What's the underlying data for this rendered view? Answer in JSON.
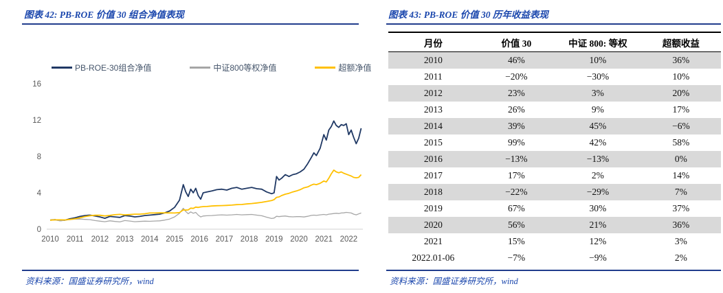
{
  "page": {
    "background": "#FFFFFF",
    "rule_color": "#203C8C",
    "title_color": "#1B47AD"
  },
  "left_panel": {
    "title": "图表 42: PB-ROE 价值 30 组合净值表现",
    "source": "资料来源：国盛证券研究所，wind"
  },
  "right_panel": {
    "title": "图表 43: PB-ROE 价值 30 历年收益表现",
    "source": "资料来源：国盛证券研究所，wind"
  },
  "chart_data": [
    {
      "type": "line",
      "title": "PB-ROE 价值 30 组合净值表现",
      "xlabel": "",
      "ylabel": "",
      "ylim": [
        0,
        16
      ],
      "yticks": [
        0,
        4,
        8,
        12,
        16
      ],
      "xticks": [
        2010,
        2011,
        2012,
        2013,
        2014,
        2015,
        2016,
        2017,
        2018,
        2019,
        2020,
        2021,
        2022
      ],
      "grid": false,
      "legend_position": "top",
      "axis_color": "#D9D9D9",
      "tick_label_color": "#595959",
      "series": [
        {
          "name": "PB-ROE-30组合净值",
          "color": "#1F3864",
          "width": 1.8,
          "points": [
            [
              2010.0,
              1.0
            ],
            [
              2010.2,
              1.05
            ],
            [
              2010.4,
              0.95
            ],
            [
              2010.6,
              1.0
            ],
            [
              2010.8,
              1.15
            ],
            [
              2011.0,
              1.25
            ],
            [
              2011.2,
              1.4
            ],
            [
              2011.4,
              1.5
            ],
            [
              2011.6,
              1.55
            ],
            [
              2011.8,
              1.45
            ],
            [
              2012.0,
              1.35
            ],
            [
              2012.2,
              1.2
            ],
            [
              2012.4,
              1.4
            ],
            [
              2012.6,
              1.35
            ],
            [
              2012.8,
              1.3
            ],
            [
              2013.0,
              1.5
            ],
            [
              2013.2,
              1.45
            ],
            [
              2013.4,
              1.35
            ],
            [
              2013.6,
              1.4
            ],
            [
              2013.8,
              1.5
            ],
            [
              2014.0,
              1.55
            ],
            [
              2014.2,
              1.6
            ],
            [
              2014.4,
              1.65
            ],
            [
              2014.6,
              1.8
            ],
            [
              2014.8,
              2.0
            ],
            [
              2015.0,
              2.4
            ],
            [
              2015.2,
              3.2
            ],
            [
              2015.35,
              4.9
            ],
            [
              2015.45,
              4.1
            ],
            [
              2015.55,
              3.6
            ],
            [
              2015.65,
              4.4
            ],
            [
              2015.75,
              4.0
            ],
            [
              2015.85,
              4.5
            ],
            [
              2015.95,
              3.7
            ],
            [
              2016.05,
              3.3
            ],
            [
              2016.15,
              4.0
            ],
            [
              2016.3,
              4.1
            ],
            [
              2016.5,
              4.2
            ],
            [
              2016.7,
              4.35
            ],
            [
              2016.9,
              4.4
            ],
            [
              2017.1,
              4.3
            ],
            [
              2017.3,
              4.5
            ],
            [
              2017.5,
              4.6
            ],
            [
              2017.7,
              4.4
            ],
            [
              2017.9,
              4.5
            ],
            [
              2018.1,
              4.6
            ],
            [
              2018.3,
              4.45
            ],
            [
              2018.5,
              4.4
            ],
            [
              2018.7,
              4.1
            ],
            [
              2018.9,
              3.9
            ],
            [
              2019.0,
              4.0
            ],
            [
              2019.1,
              5.8
            ],
            [
              2019.2,
              5.4
            ],
            [
              2019.3,
              5.6
            ],
            [
              2019.45,
              6.0
            ],
            [
              2019.6,
              5.8
            ],
            [
              2019.75,
              6.0
            ],
            [
              2019.9,
              6.1
            ],
            [
              2020.05,
              6.3
            ],
            [
              2020.2,
              6.6
            ],
            [
              2020.35,
              7.2
            ],
            [
              2020.5,
              7.9
            ],
            [
              2020.6,
              8.4
            ],
            [
              2020.7,
              8.1
            ],
            [
              2020.85,
              8.9
            ],
            [
              2021.0,
              10.4
            ],
            [
              2021.1,
              9.8
            ],
            [
              2021.2,
              10.9
            ],
            [
              2021.3,
              11.3
            ],
            [
              2021.4,
              11.9
            ],
            [
              2021.5,
              11.4
            ],
            [
              2021.6,
              11.2
            ],
            [
              2021.7,
              11.5
            ],
            [
              2021.8,
              11.4
            ],
            [
              2021.9,
              11.6
            ],
            [
              2022.0,
              10.4
            ],
            [
              2022.1,
              10.9
            ],
            [
              2022.2,
              10.1
            ],
            [
              2022.3,
              9.4
            ],
            [
              2022.4,
              10.0
            ],
            [
              2022.5,
              11.1
            ]
          ]
        },
        {
          "name": "中证800等权净值",
          "color": "#A6A6A6",
          "width": 1.3,
          "points": [
            [
              2010.0,
              1.0
            ],
            [
              2010.2,
              1.02
            ],
            [
              2010.4,
              0.92
            ],
            [
              2010.6,
              0.98
            ],
            [
              2010.8,
              1.08
            ],
            [
              2011.0,
              1.1
            ],
            [
              2011.2,
              1.12
            ],
            [
              2011.4,
              1.08
            ],
            [
              2011.6,
              1.05
            ],
            [
              2011.8,
              0.95
            ],
            [
              2012.0,
              0.88
            ],
            [
              2012.2,
              0.82
            ],
            [
              2012.4,
              0.92
            ],
            [
              2012.6,
              0.85
            ],
            [
              2012.8,
              0.8
            ],
            [
              2013.0,
              0.95
            ],
            [
              2013.2,
              0.9
            ],
            [
              2013.4,
              0.82
            ],
            [
              2013.6,
              0.85
            ],
            [
              2013.8,
              0.88
            ],
            [
              2014.0,
              0.87
            ],
            [
              2014.2,
              0.9
            ],
            [
              2014.4,
              0.92
            ],
            [
              2014.6,
              1.0
            ],
            [
              2014.8,
              1.12
            ],
            [
              2015.0,
              1.35
            ],
            [
              2015.2,
              1.75
            ],
            [
              2015.35,
              2.3
            ],
            [
              2015.45,
              1.95
            ],
            [
              2015.55,
              1.7
            ],
            [
              2015.65,
              1.9
            ],
            [
              2015.75,
              1.75
            ],
            [
              2015.85,
              1.85
            ],
            [
              2015.95,
              1.55
            ],
            [
              2016.05,
              1.35
            ],
            [
              2016.15,
              1.45
            ],
            [
              2016.3,
              1.48
            ],
            [
              2016.5,
              1.5
            ],
            [
              2016.7,
              1.55
            ],
            [
              2016.9,
              1.58
            ],
            [
              2017.1,
              1.55
            ],
            [
              2017.3,
              1.58
            ],
            [
              2017.5,
              1.62
            ],
            [
              2017.7,
              1.58
            ],
            [
              2017.9,
              1.6
            ],
            [
              2018.1,
              1.62
            ],
            [
              2018.3,
              1.55
            ],
            [
              2018.5,
              1.48
            ],
            [
              2018.7,
              1.32
            ],
            [
              2018.9,
              1.18
            ],
            [
              2019.0,
              1.22
            ],
            [
              2019.1,
              1.42
            ],
            [
              2019.2,
              1.38
            ],
            [
              2019.3,
              1.42
            ],
            [
              2019.45,
              1.45
            ],
            [
              2019.6,
              1.38
            ],
            [
              2019.75,
              1.36
            ],
            [
              2019.9,
              1.38
            ],
            [
              2020.05,
              1.38
            ],
            [
              2020.2,
              1.34
            ],
            [
              2020.35,
              1.42
            ],
            [
              2020.5,
              1.52
            ],
            [
              2020.6,
              1.55
            ],
            [
              2020.7,
              1.52
            ],
            [
              2020.85,
              1.58
            ],
            [
              2021.0,
              1.62
            ],
            [
              2021.1,
              1.58
            ],
            [
              2021.2,
              1.65
            ],
            [
              2021.3,
              1.68
            ],
            [
              2021.4,
              1.72
            ],
            [
              2021.5,
              1.75
            ],
            [
              2021.6,
              1.72
            ],
            [
              2021.7,
              1.78
            ],
            [
              2021.8,
              1.8
            ],
            [
              2021.9,
              1.85
            ],
            [
              2022.0,
              1.82
            ],
            [
              2022.1,
              1.78
            ],
            [
              2022.2,
              1.65
            ],
            [
              2022.3,
              1.58
            ],
            [
              2022.4,
              1.68
            ],
            [
              2022.5,
              1.78
            ]
          ]
        },
        {
          "name": "超额净值",
          "color": "#FFC000",
          "width": 1.8,
          "points": [
            [
              2010.0,
              1.0
            ],
            [
              2010.2,
              1.03
            ],
            [
              2010.4,
              1.03
            ],
            [
              2010.6,
              1.02
            ],
            [
              2010.8,
              1.07
            ],
            [
              2011.0,
              1.14
            ],
            [
              2011.2,
              1.25
            ],
            [
              2011.4,
              1.39
            ],
            [
              2011.6,
              1.48
            ],
            [
              2011.8,
              1.53
            ],
            [
              2012.0,
              1.53
            ],
            [
              2012.2,
              1.46
            ],
            [
              2012.4,
              1.52
            ],
            [
              2012.6,
              1.59
            ],
            [
              2012.8,
              1.63
            ],
            [
              2013.0,
              1.58
            ],
            [
              2013.2,
              1.61
            ],
            [
              2013.4,
              1.65
            ],
            [
              2013.6,
              1.65
            ],
            [
              2013.8,
              1.7
            ],
            [
              2014.0,
              1.78
            ],
            [
              2014.2,
              1.78
            ],
            [
              2014.4,
              1.8
            ],
            [
              2014.6,
              1.8
            ],
            [
              2014.8,
              1.79
            ],
            [
              2015.0,
              1.78
            ],
            [
              2015.2,
              1.83
            ],
            [
              2015.35,
              2.13
            ],
            [
              2015.45,
              2.1
            ],
            [
              2015.55,
              2.12
            ],
            [
              2015.65,
              2.32
            ],
            [
              2015.75,
              2.29
            ],
            [
              2015.85,
              2.43
            ],
            [
              2015.95,
              2.39
            ],
            [
              2016.05,
              2.45
            ],
            [
              2016.15,
              2.48
            ],
            [
              2016.3,
              2.5
            ],
            [
              2016.5,
              2.55
            ],
            [
              2016.7,
              2.58
            ],
            [
              2016.9,
              2.6
            ],
            [
              2017.1,
              2.62
            ],
            [
              2017.3,
              2.65
            ],
            [
              2017.5,
              2.7
            ],
            [
              2017.7,
              2.72
            ],
            [
              2017.9,
              2.78
            ],
            [
              2018.1,
              2.82
            ],
            [
              2018.3,
              2.88
            ],
            [
              2018.5,
              2.95
            ],
            [
              2018.7,
              3.05
            ],
            [
              2018.9,
              3.15
            ],
            [
              2019.0,
              3.25
            ],
            [
              2019.1,
              3.5
            ],
            [
              2019.2,
              3.55
            ],
            [
              2019.3,
              3.7
            ],
            [
              2019.45,
              3.85
            ],
            [
              2019.6,
              3.95
            ],
            [
              2019.75,
              4.1
            ],
            [
              2019.9,
              4.2
            ],
            [
              2020.05,
              4.35
            ],
            [
              2020.2,
              4.55
            ],
            [
              2020.35,
              4.65
            ],
            [
              2020.5,
              4.85
            ],
            [
              2020.6,
              4.95
            ],
            [
              2020.7,
              4.9
            ],
            [
              2020.85,
              5.05
            ],
            [
              2021.0,
              5.3
            ],
            [
              2021.1,
              5.2
            ],
            [
              2021.2,
              5.6
            ],
            [
              2021.3,
              6.1
            ],
            [
              2021.4,
              6.5
            ],
            [
              2021.5,
              6.3
            ],
            [
              2021.6,
              6.2
            ],
            [
              2021.7,
              6.3
            ],
            [
              2021.8,
              6.15
            ],
            [
              2021.9,
              6.05
            ],
            [
              2022.0,
              5.95
            ],
            [
              2022.1,
              5.85
            ],
            [
              2022.2,
              5.7
            ],
            [
              2022.3,
              5.65
            ],
            [
              2022.4,
              5.7
            ],
            [
              2022.5,
              6.0
            ]
          ]
        }
      ]
    },
    {
      "type": "table",
      "title": "PB-ROE 价值 30 历年收益表现",
      "columns": [
        "月份",
        "价值 30",
        "中证 800: 等权",
        "超额收益"
      ],
      "rows": [
        [
          "2010",
          "46%",
          "10%",
          "36%"
        ],
        [
          "2011",
          "−20%",
          "−30%",
          "10%"
        ],
        [
          "2012",
          "23%",
          "3%",
          "20%"
        ],
        [
          "2013",
          "26%",
          "9%",
          "17%"
        ],
        [
          "2014",
          "39%",
          "45%",
          "−6%"
        ],
        [
          "2015",
          "99%",
          "42%",
          "58%"
        ],
        [
          "2016",
          "−13%",
          "−13%",
          "0%"
        ],
        [
          "2017",
          "17%",
          "2%",
          "14%"
        ],
        [
          "2018",
          "−22%",
          "−29%",
          "7%"
        ],
        [
          "2019",
          "67%",
          "30%",
          "37%"
        ],
        [
          "2020",
          "56%",
          "21%",
          "36%"
        ],
        [
          "2021",
          "15%",
          "12%",
          "3%"
        ],
        [
          "2022.01-06",
          "−7%",
          "−9%",
          "2%"
        ]
      ],
      "shaded_rows": [
        0,
        2,
        4,
        6,
        8,
        10
      ],
      "shade_color": "#D9D9D9"
    }
  ]
}
